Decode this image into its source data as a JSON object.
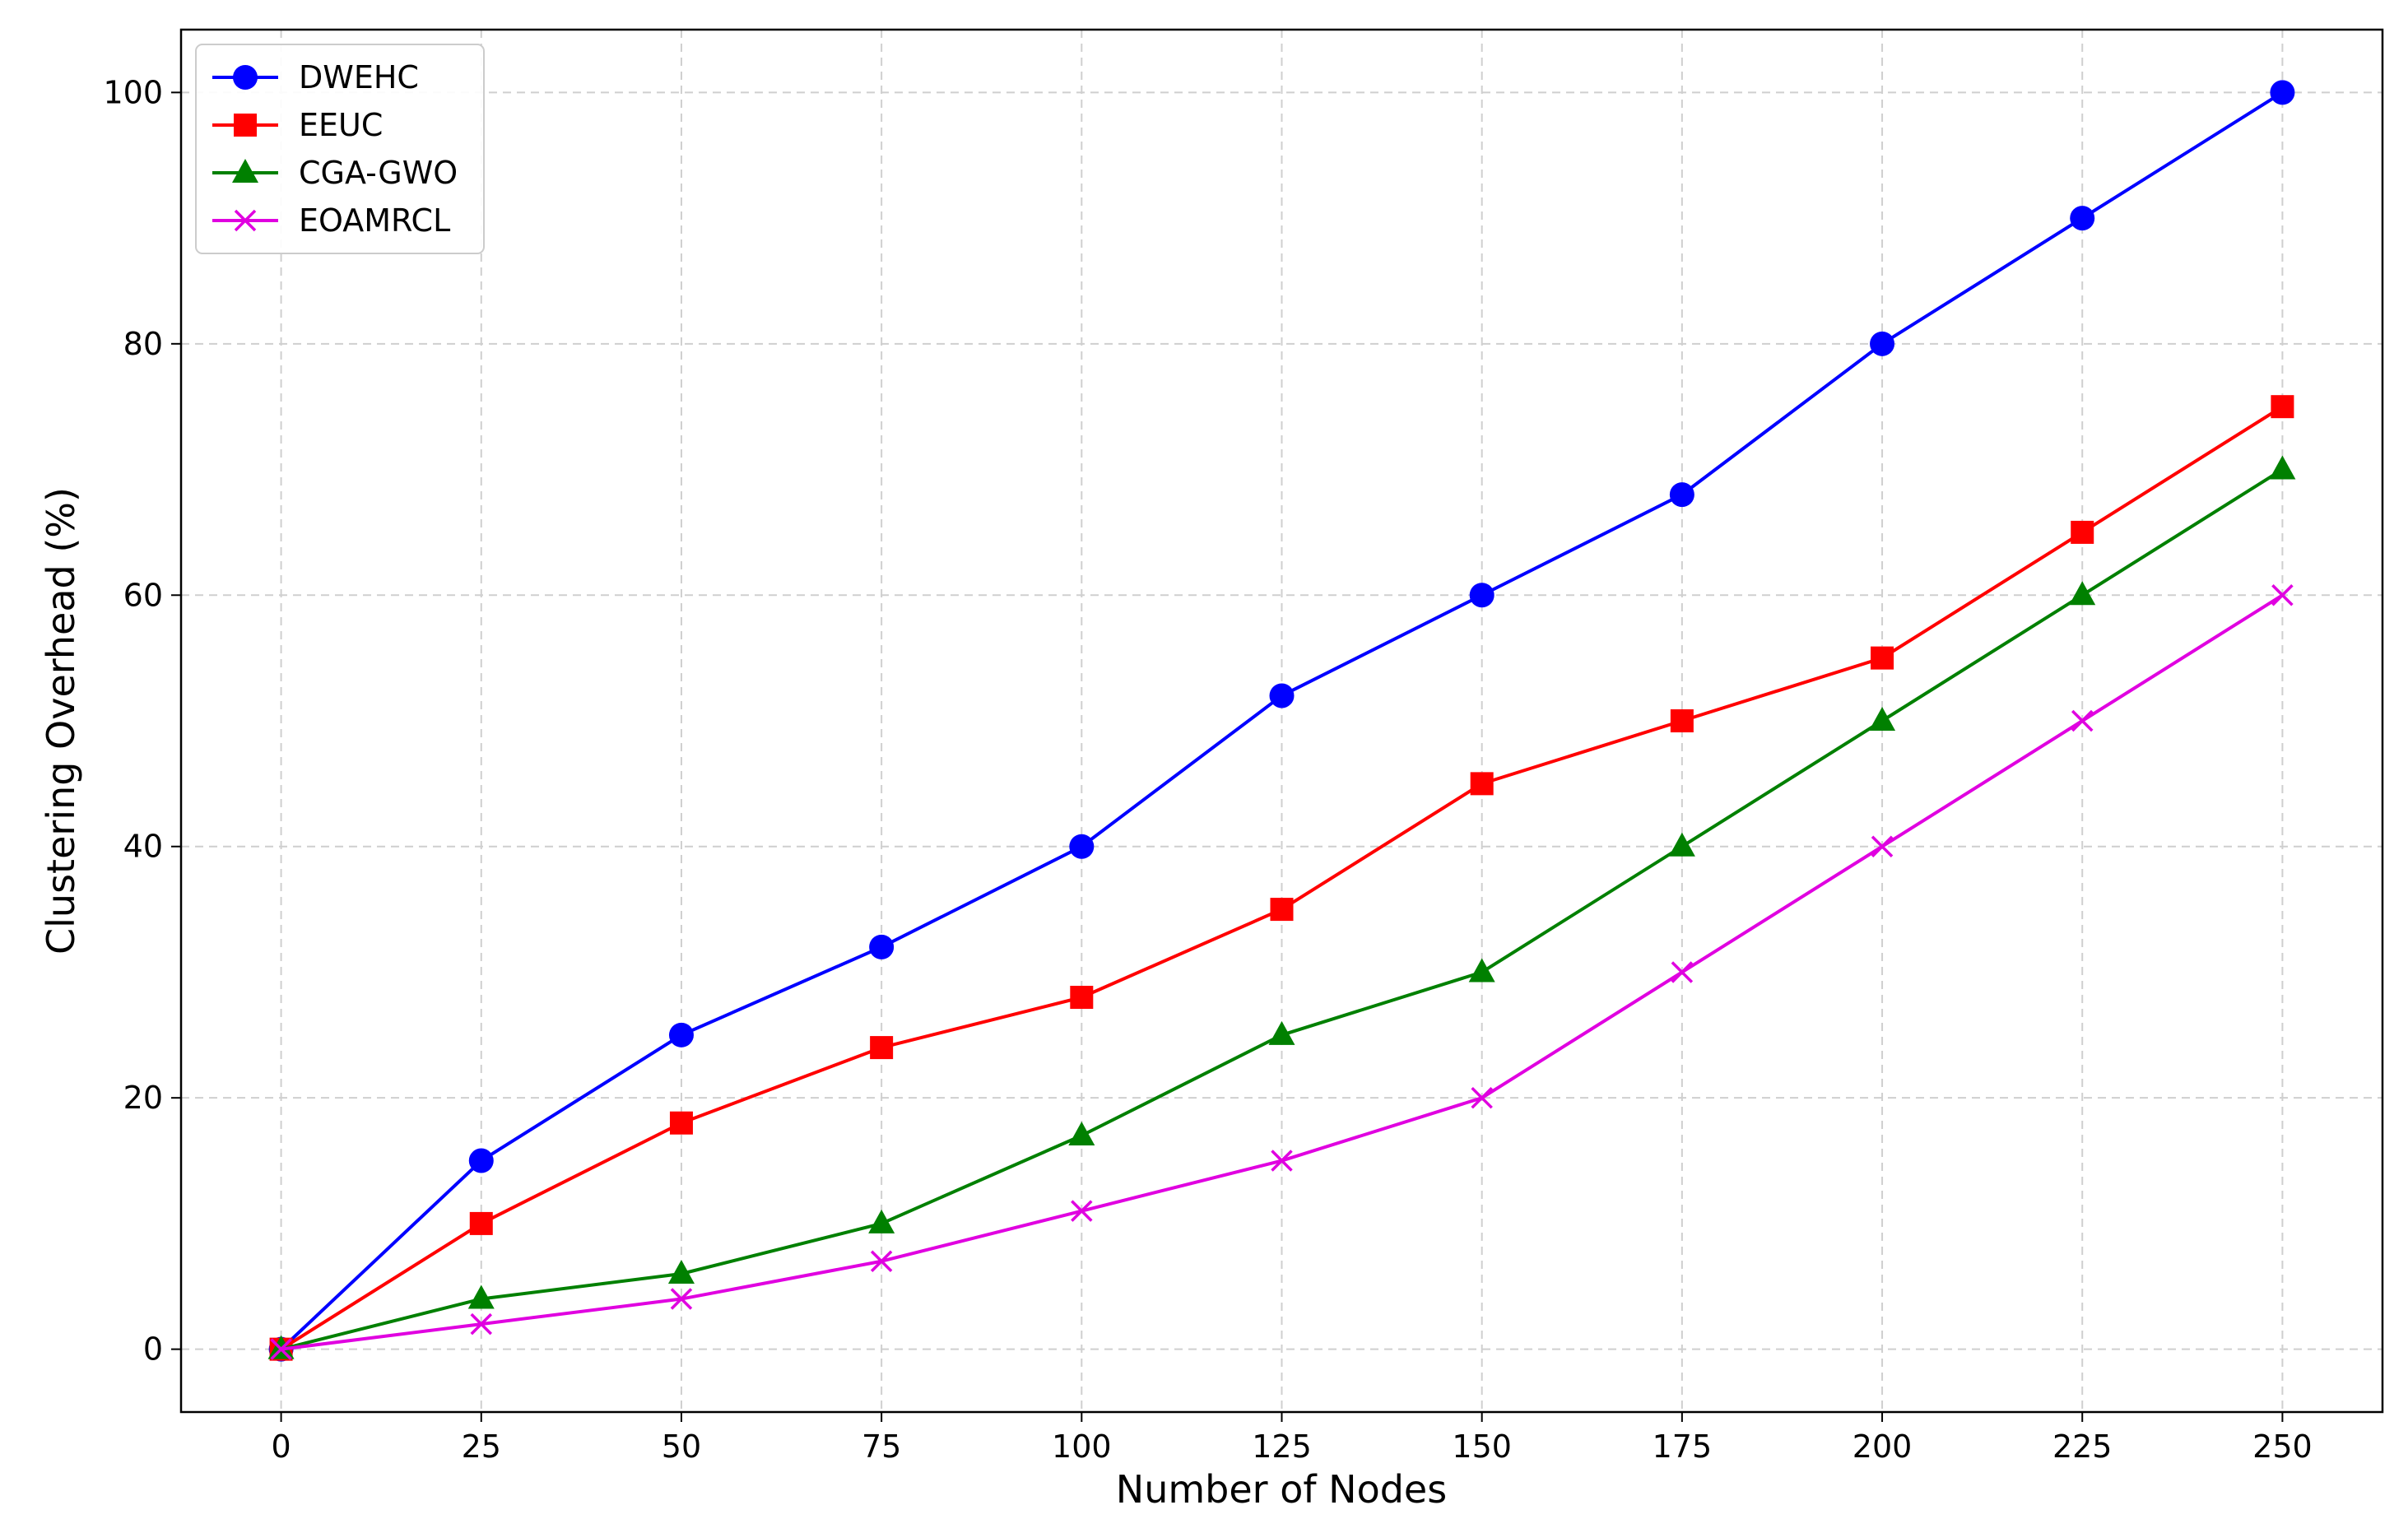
{
  "chart_data": {
    "type": "line",
    "title": "",
    "xlabel": "Number of Nodes",
    "ylabel": "Clustering Overhead (%)",
    "x": [
      0,
      25,
      50,
      75,
      100,
      125,
      150,
      175,
      200,
      225,
      250
    ],
    "xlim": [
      -12.5,
      262.5
    ],
    "ylim": [
      -5,
      105
    ],
    "xticks": [
      0,
      25,
      50,
      75,
      100,
      125,
      150,
      175,
      200,
      225,
      250
    ],
    "yticks": [
      0,
      20,
      40,
      60,
      80,
      100
    ],
    "grid": true,
    "legend_position": "top-left",
    "series": [
      {
        "name": "DWEHC",
        "color": "#0000ff",
        "marker": "circle",
        "values": [
          0,
          15,
          25,
          32,
          40,
          52,
          60,
          68,
          80,
          90,
          100
        ]
      },
      {
        "name": "EEUC",
        "color": "#ff0000",
        "marker": "square",
        "values": [
          0,
          10,
          18,
          24,
          28,
          35,
          45,
          50,
          55,
          65,
          75
        ]
      },
      {
        "name": "CGA-GWO",
        "color": "#008000",
        "marker": "triangle",
        "values": [
          0,
          4,
          6,
          10,
          17,
          25,
          30,
          40,
          50,
          60,
          70
        ]
      },
      {
        "name": "EOAMRCL",
        "color": "#e000e0",
        "marker": "x",
        "values": [
          0,
          2,
          4,
          7,
          11,
          15,
          20,
          30,
          40,
          50,
          60
        ]
      }
    ]
  }
}
